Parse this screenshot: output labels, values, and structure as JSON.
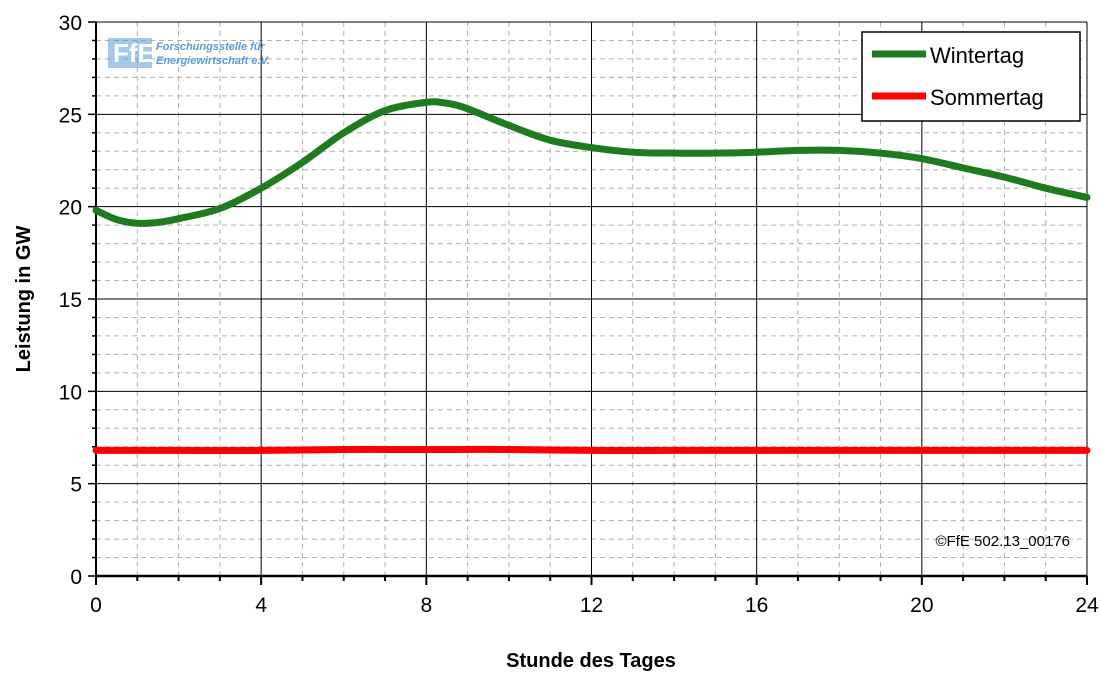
{
  "chart_data": {
    "type": "line",
    "xlabel": "Stunde des Tages",
    "ylabel": "Leistung in GW",
    "xlim": [
      0,
      24
    ],
    "ylim": [
      0,
      30
    ],
    "x_ticks": [
      "0",
      "4",
      "8",
      "12",
      "16",
      "20",
      "24"
    ],
    "y_ticks": [
      "0",
      "5",
      "10",
      "15",
      "20",
      "25",
      "30"
    ],
    "grid": "major solid, minor dashed",
    "legend_position": "top-right",
    "series": [
      {
        "name": "Wintertag",
        "color": "#1e7b1e",
        "x": [
          0,
          0.5,
          1,
          1.5,
          2,
          3,
          4,
          5,
          6,
          7,
          8,
          8.5,
          9,
          10,
          11,
          12,
          13,
          14,
          15,
          16,
          17,
          18,
          19,
          20,
          21,
          22,
          23,
          24
        ],
        "y": [
          19.8,
          19.3,
          19.1,
          19.15,
          19.35,
          19.9,
          21.0,
          22.4,
          24.0,
          25.2,
          25.65,
          25.6,
          25.3,
          24.4,
          23.6,
          23.2,
          22.95,
          22.9,
          22.9,
          22.95,
          23.05,
          23.05,
          22.9,
          22.6,
          22.1,
          21.6,
          21.0,
          20.5
        ]
      },
      {
        "name": "Sommertag",
        "color": "#ff0000",
        "x": [
          0,
          2,
          4,
          6,
          8,
          10,
          12,
          14,
          16,
          18,
          20,
          22,
          24
        ],
        "y": [
          6.8,
          6.8,
          6.8,
          6.85,
          6.85,
          6.85,
          6.8,
          6.8,
          6.8,
          6.8,
          6.8,
          6.8,
          6.8
        ]
      }
    ]
  },
  "annotations": {
    "copyright": "©FfE 502.13_00176",
    "logo_line1": "Forschungsstelle für",
    "logo_line2": "Energiewirtschaft e.V."
  },
  "colors": {
    "logo": "#5b9bd5"
  }
}
